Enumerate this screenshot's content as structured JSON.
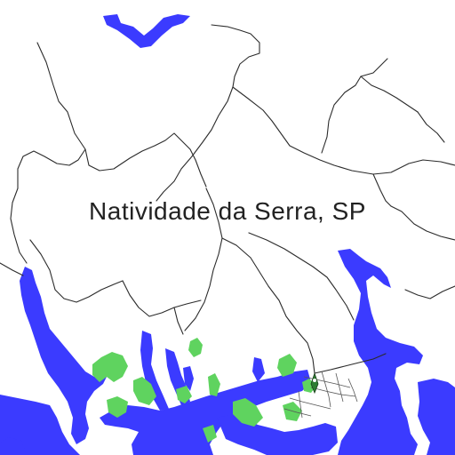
{
  "map": {
    "place_label": "Natividade da Serra, SP",
    "colors": {
      "land": "#ffffff",
      "water": "#3b3bff",
      "vegetation": "#5fd35f",
      "roads": "#2b2b2b"
    },
    "marker_icon": "map-pin-icon"
  }
}
